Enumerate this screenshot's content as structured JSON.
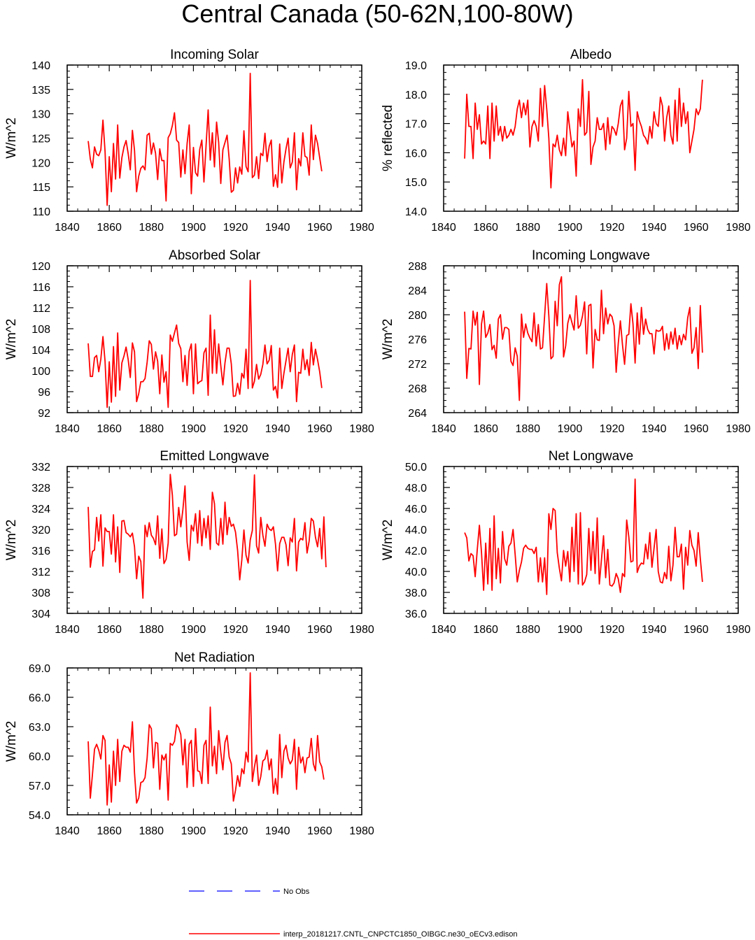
{
  "title": "Central Canada (50-62N,100-80W)",
  "colors": {
    "model": "#ff0000",
    "obs": "#0000ff",
    "axis": "#000000"
  },
  "legend": {
    "obs_label": "No Obs",
    "model_label": "interp_20181217.CNTL_CNPCTC1850_OIBGC.ne30_oECv3.edison"
  },
  "chart_data": [
    {
      "type": "line",
      "title": "Incoming Solar",
      "ylabel": "W/m^2",
      "xlim": [
        1840,
        1980
      ],
      "xticks": [
        1840,
        1860,
        1880,
        1900,
        1920,
        1940,
        1960,
        1980
      ],
      "ylim": [
        110,
        140
      ],
      "yticks": [
        110,
        115,
        120,
        125,
        130,
        135,
        140
      ],
      "ytick_labels": [
        "110",
        "115",
        "120",
        "125",
        "130",
        "135",
        "140"
      ],
      "x_start": 1850,
      "series": [
        {
          "name": "model",
          "values": [
            124.4,
            120.7,
            118.9,
            123.2,
            121.7,
            121.4,
            122.6,
            128.7,
            122.3,
            111.2,
            121.2,
            114.0,
            123.9,
            116.6,
            127.7,
            116.8,
            121.0,
            123.2,
            124.5,
            121.8,
            118.5,
            126.6,
            122.5,
            114.0,
            117.2,
            118.8,
            119.3,
            118.5,
            125.6,
            126.0,
            121.7,
            124.0,
            121.9,
            116.5,
            122.8,
            120.4,
            120.4,
            112.1,
            125.1,
            125.9,
            127.6,
            130.2,
            124.6,
            124.1,
            117.0,
            122.6,
            117.7,
            123.9,
            127.7,
            113.6,
            123.1,
            117.9,
            117.2,
            122.7,
            124.6,
            116.0,
            123.4,
            130.8,
            120.5,
            126.1,
            119.1,
            128.3,
            124.1,
            115.7,
            122.6,
            124.1,
            125.6,
            120.7,
            113.9,
            114.3,
            118.9,
            115.8,
            119.1,
            117.6,
            126.5,
            119.2,
            118.1,
            138.3,
            116.9,
            117.4,
            121.2,
            116.7,
            121.9,
            121.4,
            126.0,
            120.2,
            123.3,
            124.6,
            115.1,
            117.5,
            114.9,
            123.8,
            115.8,
            120.1,
            122.8,
            125.0,
            118.9,
            120.1,
            126.1,
            114.4,
            120.8,
            119.3,
            126.1,
            121.3,
            121.0,
            117.4,
            127.7,
            120.6,
            125.6,
            123.9,
            121.0,
            118.2
          ]
        }
      ]
    },
    {
      "type": "line",
      "title": "Albedo",
      "ylabel": "% reflected",
      "xlim": [
        1840,
        1980
      ],
      "xticks": [
        1840,
        1860,
        1880,
        1900,
        1920,
        1940,
        1960,
        1980
      ],
      "ylim": [
        14,
        19
      ],
      "yticks": [
        14,
        15,
        16,
        17,
        18,
        19
      ],
      "ytick_labels": [
        "14.0",
        "15.0",
        "16.0",
        "17.0",
        "18.0",
        "19.0"
      ],
      "x_start": 1850,
      "series": [
        {
          "name": "model",
          "values": [
            15.8,
            18.0,
            16.9,
            16.9,
            15.8,
            17.7,
            16.8,
            17.3,
            16.3,
            16.4,
            16.3,
            17.6,
            15.8,
            17.7,
            16.4,
            17.6,
            16.6,
            16.9,
            16.4,
            16.9,
            16.5,
            16.6,
            16.8,
            16.6,
            16.9,
            17.5,
            17.8,
            17.2,
            17.7,
            17.3,
            17.8,
            16.2,
            16.9,
            17.1,
            16.9,
            16.4,
            18.2,
            16.9,
            18.3,
            17.5,
            16.5,
            14.8,
            16.3,
            16.2,
            16.6,
            16.1,
            15.9,
            16.5,
            15.9,
            17.4,
            16.8,
            16.2,
            16.4,
            15.2,
            17.5,
            16.9,
            18.5,
            16.6,
            16.7,
            18.1,
            15.6,
            16.2,
            16.4,
            17.2,
            16.8,
            16.8,
            17.0,
            16.1,
            17.2,
            16.3,
            16.9,
            16.8,
            16.6,
            17.0,
            17.6,
            17.8,
            16.1,
            16.5,
            18.1,
            16.9,
            17.0,
            15.4,
            17.4,
            17.1,
            16.9,
            16.6,
            16.5,
            16.3,
            16.9,
            16.5,
            17.4,
            17.0,
            16.9,
            17.9,
            17.6,
            16.4,
            17.2,
            17.6,
            16.6,
            16.3,
            17.8,
            16.4,
            18.2,
            16.9,
            17.7,
            17.0,
            17.4,
            16.0,
            16.4,
            16.8,
            17.5,
            17.3,
            17.5,
            18.5
          ]
        }
      ]
    },
    {
      "type": "line",
      "title": "Absorbed Solar",
      "ylabel": "W/m^2",
      "xlim": [
        1840,
        1980
      ],
      "xticks": [
        1840,
        1860,
        1880,
        1900,
        1920,
        1940,
        1960,
        1980
      ],
      "ylim": [
        92,
        120
      ],
      "yticks": [
        92,
        96,
        100,
        104,
        108,
        112,
        116,
        120
      ],
      "ytick_labels": [
        "92",
        "96",
        "100",
        "104",
        "108",
        "112",
        "116",
        "120"
      ],
      "x_start": 1850,
      "series": [
        {
          "name": "model",
          "values": [
            105.2,
            98.9,
            98.9,
            102.5,
            102.9,
            99.8,
            102.2,
            106.5,
            101.8,
            93.0,
            101.7,
            94.0,
            104.6,
            95.1,
            107.2,
            96.3,
            101.5,
            102.8,
            104.5,
            102.1,
            98.7,
            105.3,
            103.6,
            94.1,
            95.6,
            97.9,
            97.9,
            98.5,
            101.6,
            105.7,
            105.0,
            100.3,
            103.6,
            101.8,
            95.6,
            103.0,
            97.8,
            99.8,
            93.0,
            106.8,
            105.6,
            107.2,
            108.7,
            105.2,
            104.2,
            97.9,
            102.9,
            97.2,
            103.7,
            105.1,
            95.6,
            105.1,
            97.5,
            97.9,
            98.1,
            103.4,
            104.3,
            95.3,
            110.6,
            99.5,
            107.8,
            99.5,
            105.1,
            101.0,
            97.3,
            101.5,
            104.3,
            104.3,
            101.3,
            95.1,
            95.2,
            97.6,
            95.5,
            99.5,
            98.6,
            104.1,
            96.6,
            117.2,
            96.7,
            98.0,
            101.2,
            98.4,
            99.3,
            101.2,
            104.9,
            101.3,
            102.0,
            104.8,
            96.3,
            97.0,
            94.8,
            104.3,
            96.6,
            99.5,
            101.9,
            104.3,
            99.8,
            103.1,
            104.9,
            94.1,
            99.7,
            99.5,
            104.1,
            100.2,
            102.1,
            99.1,
            105.4,
            101.1,
            104.1,
            102.1,
            99.8,
            96.7
          ]
        }
      ]
    },
    {
      "type": "line",
      "title": "Incoming Longwave",
      "ylabel": "W/m^2",
      "xlim": [
        1840,
        1980
      ],
      "xticks": [
        1840,
        1860,
        1880,
        1900,
        1920,
        1940,
        1960,
        1980
      ],
      "ylim": [
        264,
        288
      ],
      "yticks": [
        264,
        268,
        272,
        276,
        280,
        284,
        288
      ],
      "ytick_labels": [
        "264",
        "268",
        "272",
        "276",
        "280",
        "284",
        "288"
      ],
      "x_start": 1850,
      "series": [
        {
          "name": "model",
          "values": [
            280.5,
            269.6,
            274.5,
            274.4,
            280.6,
            278.3,
            280.4,
            268.6,
            278.5,
            280.6,
            276.3,
            277.0,
            278.4,
            274.3,
            275.0,
            272.9,
            279.3,
            280.0,
            276.0,
            277.9,
            277.9,
            277.6,
            272.4,
            271.7,
            274.6,
            273.2,
            266.0,
            280.1,
            276.3,
            278.5,
            277.0,
            276.2,
            275.6,
            280.3,
            274.9,
            278.4,
            274.4,
            274.6,
            279.8,
            285.1,
            279.8,
            272.8,
            273.2,
            282.2,
            278.2,
            284.9,
            286.2,
            273.1,
            274.9,
            278.6,
            280.0,
            278.7,
            277.5,
            283.1,
            277.8,
            278.3,
            279.8,
            282.1,
            273.6,
            281.5,
            281.7,
            271.3,
            277.6,
            275.9,
            275.8,
            284.0,
            276.9,
            281.1,
            278.5,
            280.1,
            279.7,
            278.2,
            270.6,
            275.3,
            279.0,
            275.1,
            271.9,
            276.6,
            276.8,
            281.8,
            278.5,
            272.1,
            280.3,
            275.2,
            281.2,
            276.8,
            279.3,
            277.6,
            276.9,
            276.9,
            273.6,
            277.5,
            277.3,
            277.4,
            278.1,
            274.2,
            276.9,
            274.4,
            277.2,
            275.2,
            277.8,
            274.4,
            276.6,
            275.1,
            276.8,
            275.9,
            279.5,
            281.2,
            273.7,
            274.6,
            277.9,
            271.2,
            281.5,
            273.8
          ]
        }
      ]
    },
    {
      "type": "line",
      "title": "Emitted Longwave",
      "ylabel": "W/m^2",
      "xlim": [
        1840,
        1980
      ],
      "xticks": [
        1840,
        1860,
        1880,
        1900,
        1920,
        1940,
        1960,
        1980
      ],
      "ylim": [
        304,
        332
      ],
      "yticks": [
        304,
        308,
        312,
        316,
        320,
        324,
        328,
        332
      ],
      "ytick_labels": [
        "304",
        "308",
        "312",
        "316",
        "320",
        "324",
        "328",
        "332"
      ],
      "x_start": 1850,
      "series": [
        {
          "name": "model",
          "values": [
            324.3,
            312.8,
            315.8,
            316.1,
            322.3,
            317.8,
            322.8,
            313.0,
            320.3,
            319.6,
            319.6,
            315.3,
            322.8,
            313.8,
            320.5,
            311.8,
            321.6,
            321.7,
            319.4,
            319.1,
            318.6,
            319.3,
            316.7,
            310.6,
            314.9,
            313.9,
            306.9,
            320.8,
            318.6,
            321.3,
            318.9,
            318.3,
            317.1,
            322.6,
            314.5,
            320.1,
            313.5,
            314.3,
            317.4,
            330.5,
            326.5,
            318.8,
            319.1,
            324.2,
            320.5,
            323.8,
            328.3,
            317.6,
            314.1,
            320.8,
            319.7,
            323.0,
            317.4,
            323.6,
            316.9,
            322.1,
            318.4,
            322.6,
            316.2,
            327.1,
            324.9,
            317.4,
            317.0,
            322.1,
            317.2,
            325.2,
            319.0,
            322.3,
            320.6,
            321.0,
            319.5,
            316.0,
            310.4,
            314.2,
            319.9,
            315.1,
            313.6,
            318.0,
            319.8,
            330.4,
            316.9,
            315.5,
            322.3,
            318.9,
            316.8,
            321.0,
            320.1,
            319.8,
            320.5,
            317.2,
            312.1,
            317.3,
            318.5,
            318.5,
            317.1,
            313.1,
            318.4,
            317.6,
            322.1,
            312.1,
            317.6,
            318.3,
            318.0,
            321.3,
            315.5,
            317.8,
            322.1,
            321.6,
            318.5,
            316.7,
            320.2,
            314.4,
            322.4,
            312.8
          ]
        }
      ]
    },
    {
      "type": "line",
      "title": "Net Longwave",
      "ylabel": "W/m^2",
      "xlim": [
        1840,
        1980
      ],
      "xticks": [
        1840,
        1860,
        1880,
        1900,
        1920,
        1940,
        1960,
        1980
      ],
      "ylim": [
        36,
        50
      ],
      "yticks": [
        36,
        38,
        40,
        42,
        44,
        46,
        48,
        50
      ],
      "ytick_labels": [
        "36.0",
        "38.0",
        "40.0",
        "42.0",
        "44.0",
        "46.0",
        "48.0",
        "50.0"
      ],
      "x_start": 1850,
      "series": [
        {
          "name": "model",
          "values": [
            43.7,
            43.2,
            41.0,
            41.7,
            41.5,
            39.5,
            42.1,
            44.4,
            41.8,
            38.2,
            42.7,
            38.8,
            44.1,
            38.2,
            45.3,
            39.3,
            42.2,
            38.9,
            43.8,
            41.2,
            40.6,
            42.4,
            42.7,
            44.0,
            41.6,
            39.0,
            40.1,
            40.9,
            42.2,
            42.5,
            42.2,
            42.1,
            42.1,
            41.7,
            42.3,
            39.0,
            41.3,
            39.0,
            41.3,
            37.8,
            45.5,
            44.0,
            46.0,
            45.8,
            41.8,
            40.3,
            39.1,
            42.0,
            40.5,
            41.9,
            39.0,
            44.2,
            40.0,
            45.5,
            38.8,
            45.6,
            38.7,
            39.0,
            39.7,
            44.1,
            40.1,
            43.8,
            39.8,
            45.1,
            38.8,
            41.1,
            43.4,
            39.4,
            42.1,
            38.7,
            38.6,
            38.9,
            39.8,
            39.3,
            38.0,
            39.8,
            39.5,
            44.9,
            43.3,
            40.9,
            41.0,
            48.8,
            39.9,
            40.5,
            40.8,
            40.7,
            42.6,
            41.2,
            43.7,
            40.4,
            42.2,
            44.0,
            40.0,
            39.0,
            38.9,
            39.9,
            39.3,
            42.4,
            39.1,
            40.6,
            44.2,
            41.4,
            41.4,
            42.6,
            38.3,
            42.3,
            40.6,
            43.9,
            42.5,
            42.0,
            40.5,
            43.7,
            41.2,
            39.0
          ]
        }
      ]
    },
    {
      "type": "line",
      "title": "Net Radiation",
      "ylabel": "W/m^2",
      "xlim": [
        1840,
        1980
      ],
      "xticks": [
        1840,
        1860,
        1880,
        1900,
        1920,
        1940,
        1960,
        1980
      ],
      "ylim": [
        54,
        69
      ],
      "yticks": [
        54,
        57,
        60,
        63,
        66,
        69
      ],
      "ytick_labels": [
        "54.0",
        "57.0",
        "60.0",
        "63.0",
        "66.0",
        "69.0"
      ],
      "x_start": 1850,
      "series": [
        {
          "name": "model",
          "values": [
            61.5,
            55.7,
            58.1,
            60.7,
            61.2,
            60.6,
            59.7,
            62.1,
            61.6,
            55.0,
            59.1,
            55.3,
            60.5,
            57.0,
            61.7,
            57.4,
            60.5,
            61.1,
            60.9,
            60.9,
            60.4,
            63.5,
            58.3,
            55.2,
            55.7,
            57.3,
            57.4,
            57.8,
            59.8,
            63.2,
            62.8,
            58.8,
            61.4,
            61.3,
            56.6,
            60.1,
            59.6,
            60.2,
            55.5,
            61.3,
            61.1,
            61.5,
            63.2,
            62.9,
            62.2,
            59.1,
            61.7,
            56.8,
            61.2,
            61.6,
            56.9,
            62.8,
            58.5,
            58.4,
            57.2,
            61.1,
            61.6,
            57.2,
            65.0,
            59.0,
            61.0,
            58.2,
            62.6,
            60.4,
            58.6,
            61.4,
            62.1,
            59.9,
            59.2,
            55.4,
            56.5,
            58.0,
            56.9,
            58.7,
            58.2,
            60.4,
            59.4,
            68.5,
            57.4,
            58.9,
            60.1,
            57.0,
            57.9,
            59.5,
            59.7,
            60.6,
            58.6,
            59.7,
            56.2,
            57.7,
            56.1,
            62.2,
            57.8,
            60.5,
            61.1,
            59.8,
            59.2,
            59.6,
            61.7,
            56.6,
            60.9,
            59.3,
            59.9,
            58.3,
            59.8,
            59.9,
            61.8,
            59.2,
            58.5,
            62.1,
            59.4,
            58.9,
            57.6
          ]
        }
      ]
    }
  ]
}
